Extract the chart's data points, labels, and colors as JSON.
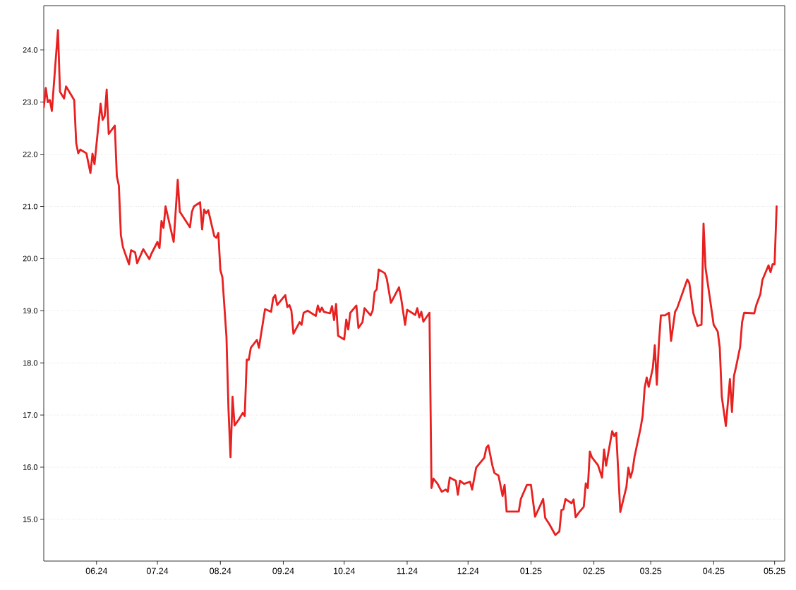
{
  "chart_data": {
    "type": "line",
    "x": [
      "2024-05-06",
      "2024-05-07",
      "2024-05-08",
      "2024-05-09",
      "2024-05-10",
      "2024-05-13",
      "2024-05-14",
      "2024-05-16",
      "2024-05-17",
      "2024-05-21",
      "2024-05-22",
      "2024-05-23",
      "2024-05-24",
      "2024-05-27",
      "2024-05-29",
      "2024-05-30",
      "2024-05-31",
      "2024-06-03",
      "2024-06-04",
      "2024-06-05",
      "2024-06-06",
      "2024-06-07",
      "2024-06-10",
      "2024-06-11",
      "2024-06-12",
      "2024-06-13",
      "2024-06-14",
      "2024-06-17",
      "2024-06-18",
      "2024-06-20",
      "2024-06-21",
      "2024-06-24",
      "2024-06-27",
      "2024-06-28",
      "2024-07-01",
      "2024-07-02",
      "2024-07-03",
      "2024-07-04",
      "2024-07-05",
      "2024-07-09",
      "2024-07-11",
      "2024-07-12",
      "2024-07-17",
      "2024-07-18",
      "2024-07-19",
      "2024-07-22",
      "2024-07-23",
      "2024-07-24",
      "2024-07-25",
      "2024-07-26",
      "2024-07-29",
      "2024-07-30",
      "2024-07-31",
      "2024-08-01",
      "2024-08-02",
      "2024-08-04",
      "2024-08-05",
      "2024-08-06",
      "2024-08-07",
      "2024-08-08",
      "2024-08-10",
      "2024-08-12",
      "2024-08-13",
      "2024-08-14",
      "2024-08-15",
      "2024-08-16",
      "2024-08-19",
      "2024-08-20",
      "2024-08-23",
      "2024-08-26",
      "2024-08-27",
      "2024-08-28",
      "2024-08-29",
      "2024-09-02",
      "2024-09-03",
      "2024-09-04",
      "2024-09-05",
      "2024-09-06",
      "2024-09-09",
      "2024-09-10",
      "2024-09-11",
      "2024-09-13",
      "2024-09-17",
      "2024-09-18",
      "2024-09-19",
      "2024-09-20",
      "2024-09-21",
      "2024-09-24",
      "2024-09-25",
      "2024-09-26",
      "2024-09-27",
      "2024-09-28",
      "2024-10-01",
      "2024-10-02",
      "2024-10-03",
      "2024-10-04",
      "2024-10-07",
      "2024-10-08",
      "2024-10-10",
      "2024-10-11",
      "2024-10-14",
      "2024-10-15",
      "2024-10-16",
      "2024-10-17",
      "2024-10-18",
      "2024-10-21",
      "2024-10-22",
      "2024-10-24",
      "2024-10-28",
      "2024-10-29",
      "2024-10-31",
      "2024-11-01",
      "2024-11-05",
      "2024-11-06",
      "2024-11-07",
      "2024-11-08",
      "2024-11-09",
      "2024-11-12",
      "2024-11-13",
      "2024-11-14",
      "2024-11-16",
      "2024-11-18",
      "2024-11-20",
      "2024-11-21",
      "2024-11-22",
      "2024-11-25",
      "2024-11-26",
      "2024-11-27",
      "2024-11-29",
      "2024-12-02",
      "2024-12-03",
      "2024-12-05",
      "2024-12-09",
      "2024-12-10",
      "2024-12-11",
      "2024-12-13",
      "2024-12-14",
      "2024-12-16",
      "2024-12-18",
      "2024-12-19",
      "2024-12-20",
      "2024-12-26",
      "2024-12-27",
      "2024-12-30",
      "2025-01-01",
      "2025-01-03",
      "2025-01-07",
      "2025-01-08",
      "2025-01-10",
      "2025-01-13",
      "2025-01-15",
      "2025-01-16",
      "2025-01-17",
      "2025-01-18",
      "2025-01-21",
      "2025-01-22",
      "2025-01-23",
      "2025-01-25",
      "2025-01-27",
      "2025-01-28",
      "2025-01-29",
      "2025-01-30",
      "2025-01-31",
      "2025-02-03",
      "2025-02-05",
      "2025-02-06",
      "2025-02-07",
      "2025-02-10",
      "2025-02-11",
      "2025-02-12",
      "2025-02-14",
      "2025-02-17",
      "2025-02-18",
      "2025-02-19",
      "2025-02-20",
      "2025-02-21",
      "2025-02-24",
      "2025-02-25",
      "2025-02-26",
      "2025-02-27",
      "2025-02-28",
      "2025-03-02",
      "2025-03-03",
      "2025-03-04",
      "2025-03-05",
      "2025-03-06",
      "2025-03-08",
      "2025-03-10",
      "2025-03-11",
      "2025-03-13",
      "2025-03-14",
      "2025-03-19",
      "2025-03-20",
      "2025-03-22",
      "2025-03-24",
      "2025-03-26",
      "2025-03-27",
      "2025-03-28",
      "2025-04-01",
      "2025-04-03",
      "2025-04-04",
      "2025-04-05",
      "2025-04-07",
      "2025-04-09",
      "2025-04-10",
      "2025-04-11",
      "2025-04-12",
      "2025-04-14",
      "2025-04-15",
      "2025-04-16",
      "2025-04-21",
      "2025-04-22",
      "2025-04-24",
      "2025-04-25",
      "2025-04-28",
      "2025-04-29",
      "2025-04-30",
      "2025-05-01",
      "2025-05-02"
    ],
    "values": [
      22.9,
      23.27,
      23.0,
      23.04,
      22.83,
      24.38,
      23.2,
      23.07,
      23.3,
      23.04,
      22.21,
      22.02,
      22.09,
      22.02,
      21.64,
      22.01,
      21.81,
      22.97,
      22.66,
      22.73,
      23.24,
      22.39,
      22.55,
      21.58,
      21.4,
      20.45,
      20.22,
      19.89,
      20.16,
      20.12,
      19.91,
      20.18,
      19.99,
      20.09,
      20.32,
      20.2,
      20.72,
      20.59,
      21.0,
      20.32,
      21.51,
      20.9,
      20.6,
      20.9,
      21.0,
      21.08,
      20.56,
      20.94,
      20.87,
      20.93,
      20.43,
      20.4,
      20.49,
      19.78,
      19.64,
      18.5,
      17.11,
      16.19,
      17.35,
      16.8,
      16.91,
      17.04,
      16.98,
      18.06,
      18.06,
      18.29,
      18.44,
      18.29,
      19.03,
      18.98,
      19.24,
      19.3,
      19.11,
      19.3,
      19.07,
      19.11,
      19.0,
      18.56,
      18.78,
      18.73,
      18.96,
      19.0,
      18.9,
      19.1,
      18.98,
      19.06,
      18.98,
      18.95,
      19.09,
      18.82,
      19.13,
      18.52,
      18.45,
      18.83,
      18.64,
      18.96,
      19.1,
      18.67,
      18.78,
      19.05,
      18.91,
      19.0,
      19.36,
      19.41,
      19.79,
      19.72,
      19.61,
      19.15,
      19.45,
      19.25,
      18.73,
      19.02,
      18.92,
      19.05,
      18.87,
      18.98,
      18.79,
      18.96,
      15.6,
      15.78,
      15.68,
      15.53,
      15.57,
      15.53,
      15.8,
      15.74,
      15.47,
      15.74,
      15.68,
      15.72,
      15.57,
      15.99,
      16.18,
      16.37,
      16.42,
      16.03,
      15.89,
      15.84,
      15.45,
      15.66,
      15.15,
      15.15,
      15.39,
      15.66,
      15.66,
      15.05,
      15.39,
      15.03,
      14.91,
      14.7,
      14.77,
      15.18,
      15.19,
      15.39,
      15.31,
      15.38,
      15.04,
      15.15,
      15.24,
      15.69,
      15.6,
      16.3,
      16.19,
      16.04,
      15.8,
      16.34,
      16.03,
      16.69,
      16.6,
      16.66,
      15.14,
      15.62,
      15.99,
      15.8,
      15.93,
      16.2,
      16.75,
      16.98,
      17.52,
      17.72,
      17.54,
      17.9,
      18.34,
      17.58,
      18.37,
      18.91,
      18.91,
      18.96,
      18.42,
      18.98,
      19.05,
      19.6,
      19.53,
      18.95,
      18.71,
      18.73,
      20.67,
      19.82,
      18.73,
      18.6,
      18.29,
      17.35,
      16.79,
      17.69,
      17.06,
      17.75,
      17.92,
      18.3,
      18.78,
      18.96,
      18.95,
      19.11,
      19.32,
      19.59,
      19.87,
      19.74,
      19.89,
      19.89,
      21.0
    ],
    "color": "#e82020",
    "xlim": [
      "2024-05-06",
      "2025-05-06"
    ],
    "xticks": [
      {
        "value": "2024-06-01",
        "label": "06.24"
      },
      {
        "value": "2024-07-01",
        "label": "07.24"
      },
      {
        "value": "2024-08-01",
        "label": "08.24"
      },
      {
        "value": "2024-09-01",
        "label": "09.24"
      },
      {
        "value": "2024-10-01",
        "label": "10.24"
      },
      {
        "value": "2024-11-01",
        "label": "11.24"
      },
      {
        "value": "2024-12-01",
        "label": "12.24"
      },
      {
        "value": "2025-01-01",
        "label": "01.25"
      },
      {
        "value": "2025-02-01",
        "label": "02.25"
      },
      {
        "value": "2025-03-01",
        "label": "03.25"
      },
      {
        "value": "2025-04-01",
        "label": "04.25"
      },
      {
        "value": "2025-05-01",
        "label": "05.25"
      }
    ],
    "ylim": [
      14.2,
      24.85
    ],
    "yticks": [
      {
        "value": 15,
        "label": "15.0"
      },
      {
        "value": 16,
        "label": "16.0"
      },
      {
        "value": 17,
        "label": "17.0"
      },
      {
        "value": 18,
        "label": "18.0"
      },
      {
        "value": 19,
        "label": "19.0"
      },
      {
        "value": 20,
        "label": "20.0"
      },
      {
        "value": 21,
        "label": "21.0"
      },
      {
        "value": 22,
        "label": "22.0"
      },
      {
        "value": 23,
        "label": "23.0"
      },
      {
        "value": 24,
        "label": "24.0"
      }
    ],
    "grid": "y",
    "line_style": "solid"
  }
}
